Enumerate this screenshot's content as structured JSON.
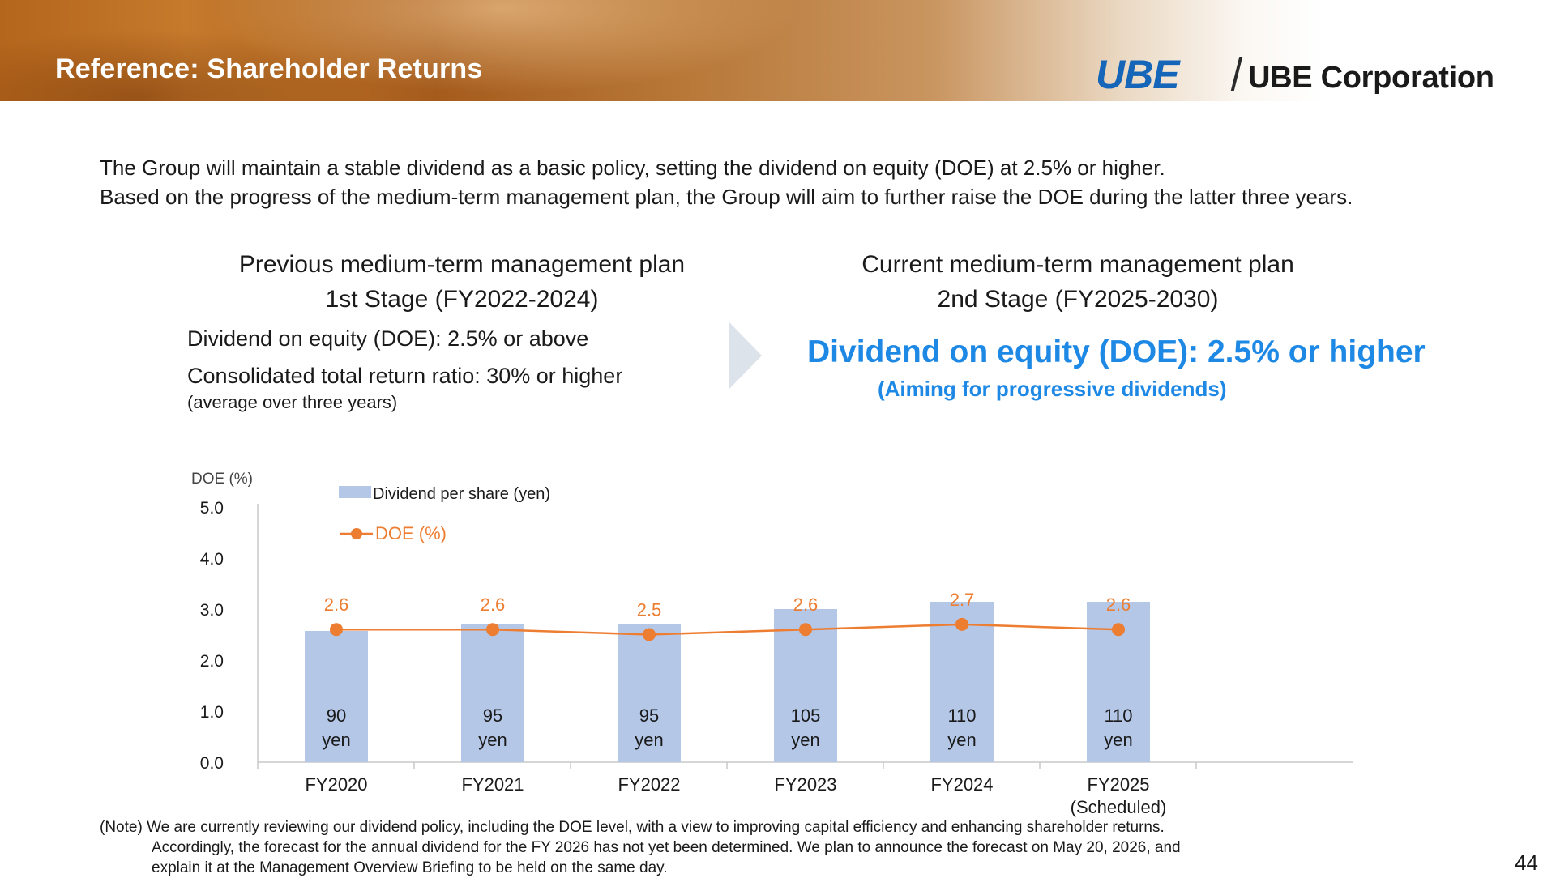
{
  "header": {
    "title": "Reference: Shareholder Returns",
    "logo_mark": "UBE",
    "logo_text": "UBE Corporation",
    "colors": {
      "band": "#b4661c",
      "logo": "#1565b8"
    }
  },
  "intro": {
    "line1": "The Group will maintain a stable dividend as a basic policy, setting the dividend on equity (DOE) at 2.5% or higher.",
    "line2": "Based on the progress of the medium-term management plan, the Group will aim to further raise the DOE during the latter three years."
  },
  "previous_plan": {
    "title": "Previous medium-term management plan",
    "stage": "1st Stage (FY2022-2024)",
    "doe": "Dividend on equity (DOE): 2.5% or above",
    "return_ratio": "Consolidated total return ratio: 30% or higher",
    "note": "(average over three years)"
  },
  "current_plan": {
    "title": "Current medium-term management plan",
    "stage": "2nd Stage (FY2025-2030)",
    "doe": "Dividend on equity (DOE): 2.5% or higher",
    "note": "(Aiming for progressive dividends)",
    "accent_color": "#1e88e5"
  },
  "chart_data": {
    "type": "bar",
    "ylabel": "DOE (%)",
    "ylim": [
      0,
      5
    ],
    "yticks": [
      "0.0",
      "1.0",
      "2.0",
      "3.0",
      "4.0",
      "5.0"
    ],
    "categories": [
      "FY2020",
      "FY2021",
      "FY2022",
      "FY2023",
      "FY2024",
      "FY2025"
    ],
    "category_labels": [
      "FY2020",
      "FY2021",
      "FY2022",
      "FY2023",
      "FY2024",
      "FY2025\n(Scheduled)"
    ],
    "series": [
      {
        "name": "Dividend per share (yen)",
        "type": "bar",
        "color": "#b4c7e7",
        "values": [
          90,
          95,
          95,
          105,
          110,
          110
        ],
        "labels": [
          "90\nyen",
          "95\nyen",
          "95\nyen",
          "105\nyen",
          "110\nyen",
          "110\nyen"
        ]
      },
      {
        "name": "DOE (%)",
        "type": "line",
        "color": "#ed7d31",
        "values": [
          2.6,
          2.6,
          2.5,
          2.6,
          2.7,
          2.6
        ],
        "labels": [
          "2.6",
          "2.6",
          "2.5",
          "2.6",
          "2.7",
          "2.6"
        ]
      }
    ],
    "legend_position": "top-left",
    "grid": false
  },
  "footnote": {
    "line1": "(Note) We are currently reviewing our dividend policy, including the DOE level, with a view to improving capital efficiency and enhancing shareholder returns.",
    "line2": "Accordingly, the forecast for the annual dividend for the FY 2026 has not yet been determined. We plan to announce the forecast on May 20, 2026, and",
    "line3": "explain it at the Management Overview Briefing to be held on the same day."
  },
  "page_number": "44"
}
